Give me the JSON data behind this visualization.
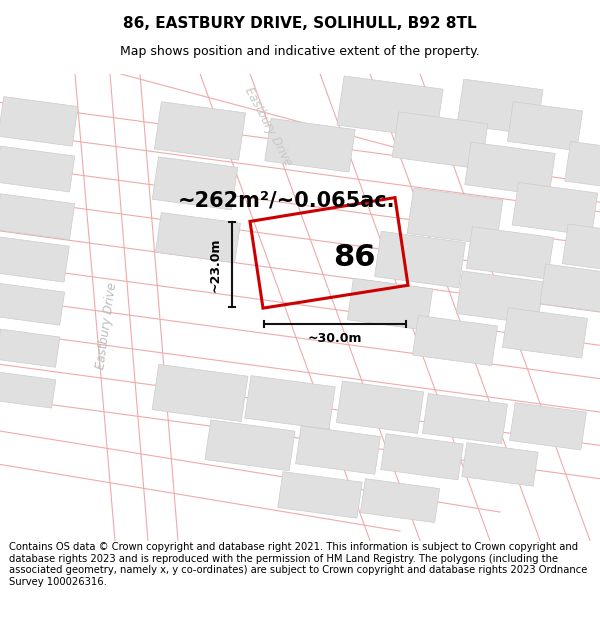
{
  "title": "86, EASTBURY DRIVE, SOLIHULL, B92 8TL",
  "subtitle": "Map shows position and indicative extent of the property.",
  "area_text": "~262m²/~0.065ac.",
  "number_label": "86",
  "dim_width": "~30.0m",
  "dim_height": "~23.0m",
  "street_label_left": "Eastbury Drive",
  "street_label_top": "Eastbury Drive",
  "footer": "Contains OS data © Crown copyright and database right 2021. This information is subject to Crown copyright and database rights 2023 and is reproduced with the permission of HM Land Registry. The polygons (including the associated geometry, namely x, y co-ordinates) are subject to Crown copyright and database rights 2023 Ordnance Survey 100026316.",
  "map_bg": "#ffffff",
  "building_fill": "#e0e0e0",
  "building_edge": "#cccccc",
  "road_line_color": "#f0aaaa",
  "road_line_color2": "#e8b0b0",
  "highlight_color": "#cc0000",
  "dim_color": "#111111",
  "street_color": "#bbbbbb",
  "title_fontsize": 11,
  "subtitle_fontsize": 9,
  "area_fontsize": 15,
  "number_fontsize": 22,
  "footer_fontsize": 7.2,
  "street_fontsize": 8.5,
  "dim_fontsize": 9
}
